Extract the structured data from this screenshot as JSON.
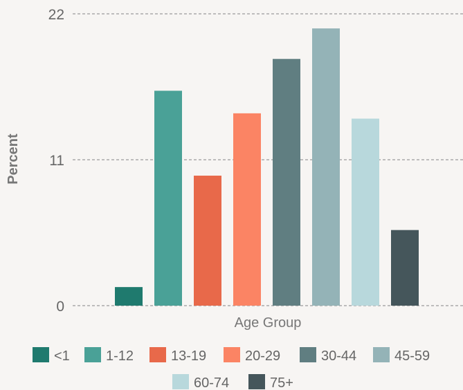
{
  "chart_data": {
    "type": "bar",
    "categories": [
      "<1",
      "1-12",
      "13-19",
      "20-29",
      "30-44",
      "45-59",
      "60-74",
      "75+"
    ],
    "values": [
      1.4,
      16.2,
      9.8,
      14.5,
      18.6,
      20.9,
      14.1,
      5.7
    ],
    "colors": [
      "#1f7a6e",
      "#4aa197",
      "#e8694a",
      "#fb8464",
      "#607e81",
      "#94b3b7",
      "#b8d8dc",
      "#45565b"
    ],
    "ylabel": "Percent",
    "xlabel": "Age Group",
    "ylim": [
      0,
      22
    ],
    "yticks": [
      0,
      11,
      22
    ],
    "grid": true,
    "legend_position": "bottom"
  }
}
